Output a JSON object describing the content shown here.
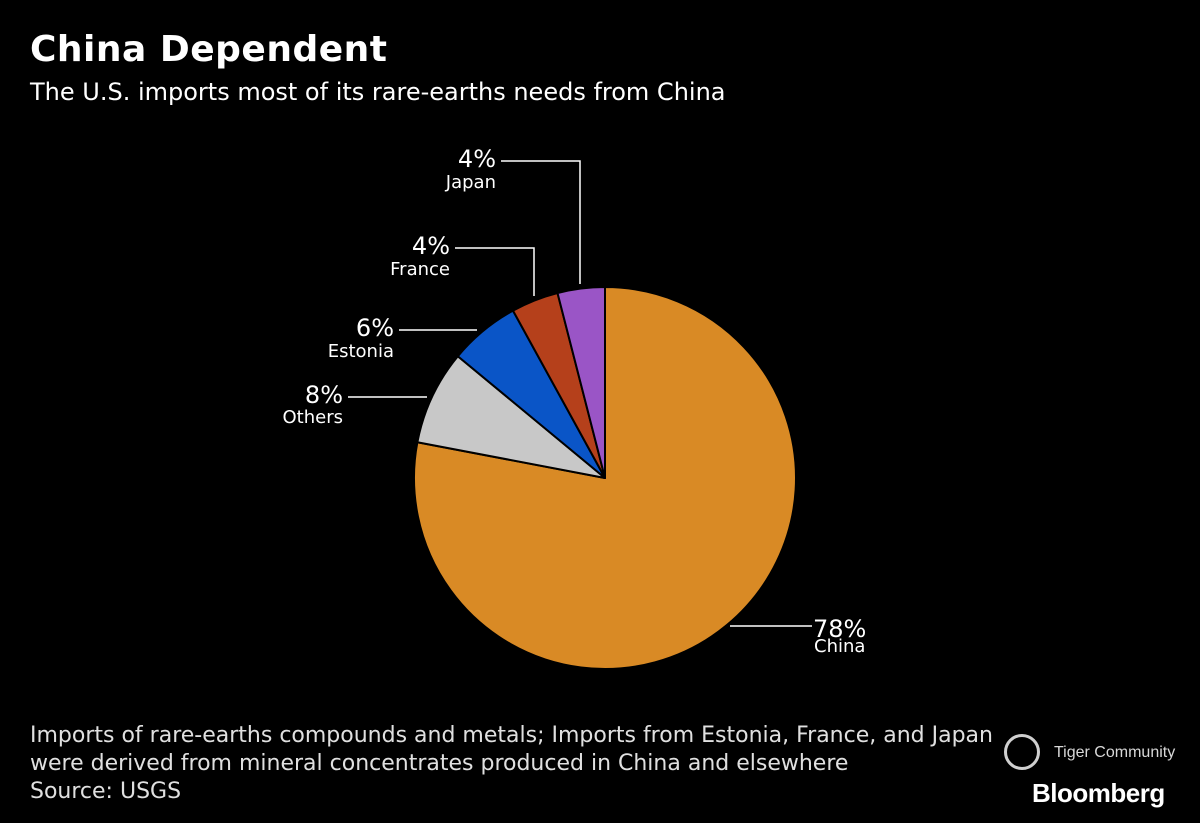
{
  "header": {
    "title": "China Dependent",
    "subtitle": "The U.S. imports most of its rare-earths needs from China"
  },
  "chart_data": {
    "type": "pie",
    "title": "China Dependent",
    "subtitle": "The U.S. imports most of its rare-earths needs from China",
    "start": "12 o'clock, clockwise",
    "slices": [
      {
        "label": "China",
        "value": 78,
        "display": "78%",
        "color": "#d98a25"
      },
      {
        "label": "Others",
        "value": 8,
        "display": "8%",
        "color": "#c8c8c8"
      },
      {
        "label": "Estonia",
        "value": 6,
        "display": "6%",
        "color": "#0a55c7"
      },
      {
        "label": "France",
        "value": 4,
        "display": "4%",
        "color": "#b5401b"
      },
      {
        "label": "Japan",
        "value": 4,
        "display": "4%",
        "color": "#9a55c6"
      }
    ]
  },
  "footer": {
    "note_line1": "Imports of rare-earths compounds and metals; Imports from Estonia, France, and Japan",
    "note_line2": "were derived from mineral concentrates produced in China and elsewhere",
    "source": "Source: USGS"
  },
  "watermark": {
    "text": "Tiger Community",
    "icon": "tiger-community-logo-icon"
  },
  "brand": {
    "name": "Bloomberg"
  }
}
